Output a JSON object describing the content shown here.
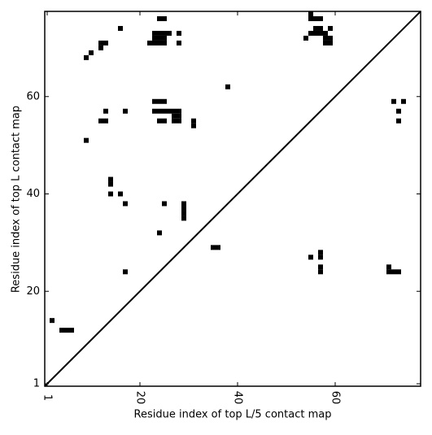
{
  "chart_data": {
    "type": "scatter",
    "xlabel": "Residue index of top L/5 contact map",
    "ylabel": "Residue index of top L contact map",
    "color": "#000000",
    "xlim": [
      0.5,
      77.5
    ],
    "ylim": [
      0.5,
      77.5
    ],
    "xticks": [
      1,
      20,
      40,
      60
    ],
    "yticks": [
      1,
      20,
      40,
      60
    ],
    "x": [
      2,
      4,
      5,
      6,
      17,
      24,
      29,
      29,
      29,
      29,
      25,
      17,
      14,
      16,
      14,
      14,
      35,
      36,
      55,
      57,
      57,
      57,
      57,
      71,
      71,
      72,
      73,
      9,
      12,
      13,
      13,
      17,
      23,
      24,
      25,
      23,
      24,
      25,
      26,
      27,
      28,
      27,
      28,
      24,
      25,
      27,
      28,
      31,
      31,
      38,
      16,
      9,
      10,
      12,
      12,
      13,
      24,
      25,
      23,
      24,
      25,
      26,
      23,
      24,
      25,
      22,
      23,
      24,
      25,
      28,
      28,
      55,
      55,
      56,
      57,
      56,
      57,
      55,
      56,
      57,
      58,
      59,
      58,
      59,
      58,
      59,
      54,
      72,
      74,
      73,
      73
    ],
    "values": [
      14,
      12,
      12,
      12,
      24,
      32,
      35,
      36,
      37,
      38,
      38,
      38,
      40,
      40,
      42,
      43,
      29,
      29,
      27,
      27,
      28,
      24,
      25,
      25,
      24,
      24,
      24,
      51,
      55,
      55,
      57,
      57,
      59,
      59,
      59,
      57,
      57,
      57,
      57,
      57,
      57,
      56,
      56,
      55,
      55,
      55,
      55,
      54,
      55,
      62,
      74,
      68,
      69,
      70,
      71,
      71,
      76,
      76,
      73,
      73,
      73,
      73,
      72,
      72,
      72,
      71,
      71,
      71,
      71,
      73,
      71,
      77,
      76,
      76,
      76,
      74,
      74,
      73,
      73,
      73,
      73,
      74,
      72,
      72,
      71,
      71,
      72,
      59,
      59,
      57,
      55
    ]
  }
}
